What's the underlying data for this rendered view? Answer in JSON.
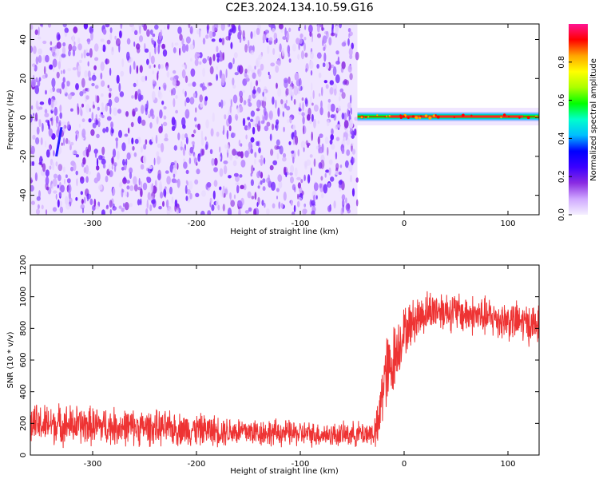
{
  "title": "C2E3.2024.134.10.59.G16",
  "chart_data": [
    {
      "type": "heatmap",
      "xlabel": "Height of straight line (km)",
      "ylabel": "Frequency (Hz)",
      "xlim": [
        -360,
        130
      ],
      "ylim": [
        -50,
        48
      ],
      "xticks": [
        -300,
        -200,
        -100,
        0,
        100
      ],
      "yticks": [
        -40,
        -20,
        0,
        20,
        40
      ],
      "noise_region": {
        "x": [
          -360,
          -45
        ],
        "y": [
          -50,
          48
        ]
      },
      "signal_band": {
        "x": [
          -45,
          130
        ],
        "frequency_hz": 0,
        "amplitude_peak": 0.98
      },
      "colorbar": {
        "label": "Normalized spectral amplitude",
        "range": [
          0,
          1
        ],
        "ticks": [
          0.0,
          0.2,
          0.4,
          0.6,
          0.8
        ],
        "colormap": [
          "#f5f0ff",
          "#cfa8ff",
          "#8a2be2",
          "#3b00ff",
          "#0000ff",
          "#00bfff",
          "#00ffcc",
          "#00ff00",
          "#aaff00",
          "#ffff00",
          "#ffa500",
          "#ff0000",
          "#ff1493"
        ]
      }
    },
    {
      "type": "line",
      "xlabel": "Height of straight line (km)",
      "ylabel": "SNR (10 * v/v)",
      "xlim": [
        -360,
        130
      ],
      "ylim": [
        0,
        1200
      ],
      "xticks": [
        -300,
        -200,
        -100,
        0,
        100
      ],
      "yticks": [
        0,
        200,
        400,
        600,
        800,
        1000,
        1200
      ],
      "color": "#ee3333",
      "series": [
        {
          "x": [
            -360,
            -340,
            -320,
            -300,
            -280,
            -260,
            -240,
            -220,
            -200,
            -180,
            -160,
            -140,
            -120,
            -100,
            -80,
            -60,
            -40,
            -30,
            -25,
            -20,
            -15,
            -10,
            -5,
            0,
            10,
            20,
            30,
            40,
            50,
            60,
            70,
            80,
            90,
            100,
            110,
            120,
            130
          ],
          "values": [
            190,
            195,
            190,
            185,
            180,
            175,
            170,
            165,
            160,
            155,
            150,
            145,
            140,
            135,
            130,
            128,
            135,
            140,
            160,
            480,
            520,
            610,
            700,
            780,
            850,
            900,
            920,
            915,
            900,
            890,
            880,
            870,
            860,
            850,
            840,
            830,
            820
          ],
          "spread": [
            150,
            150,
            150,
            145,
            140,
            135,
            130,
            125,
            120,
            115,
            110,
            105,
            100,
            95,
            90,
            90,
            95,
            100,
            180,
            320,
            300,
            260,
            220,
            180,
            170,
            160,
            150,
            150,
            150,
            150,
            150,
            150,
            150,
            150,
            150,
            150,
            150
          ]
        }
      ]
    }
  ]
}
